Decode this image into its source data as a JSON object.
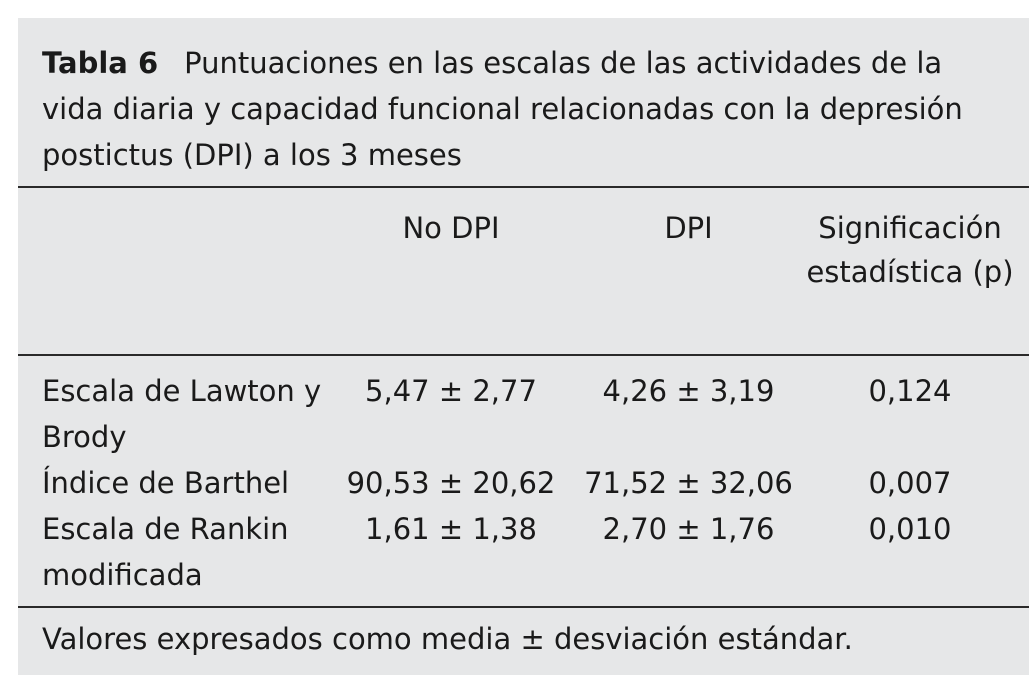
{
  "table": {
    "label": "Tabla 6",
    "caption": "Puntuaciones en las escalas de las actividades de la vida diaria y capacidad funcional relacionadas con la depresión postictus (DPI) a los 3 meses",
    "columns": [
      "No DPI",
      "DPI",
      "Significación estadística (p)"
    ],
    "rows": [
      {
        "label": "Escala de Lawton y Brody",
        "no_dpi": "5,47 ± 2,77",
        "dpi": "4,26 ± 3,19",
        "p": "0,124"
      },
      {
        "label": "Índice de Barthel",
        "no_dpi": "90,53 ± 20,62",
        "dpi": "71,52 ± 32,06",
        "p": "0,007"
      },
      {
        "label": "Escala de Rankin modificada",
        "no_dpi": "1,61 ± 1,38",
        "dpi": "2,70 ± 1,76",
        "p": "0,010"
      }
    ],
    "footnote": "Valores expresados como media ± desviación estándar."
  }
}
